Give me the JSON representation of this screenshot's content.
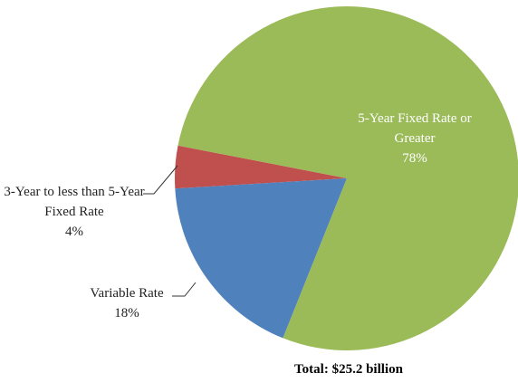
{
  "chart_data": {
    "type": "pie",
    "categories": [
      "5-Year Fixed Rate or Greater",
      "Variable Rate",
      "3-Year to less than 5-Year Fixed Rate"
    ],
    "values": [
      78,
      18,
      4
    ],
    "value_labels": [
      "78%",
      "18%",
      "4%"
    ],
    "colors": [
      "#9bbb59",
      "#4f81bd",
      "#c0504d"
    ],
    "annotation": "Total: $25.2 billion"
  }
}
